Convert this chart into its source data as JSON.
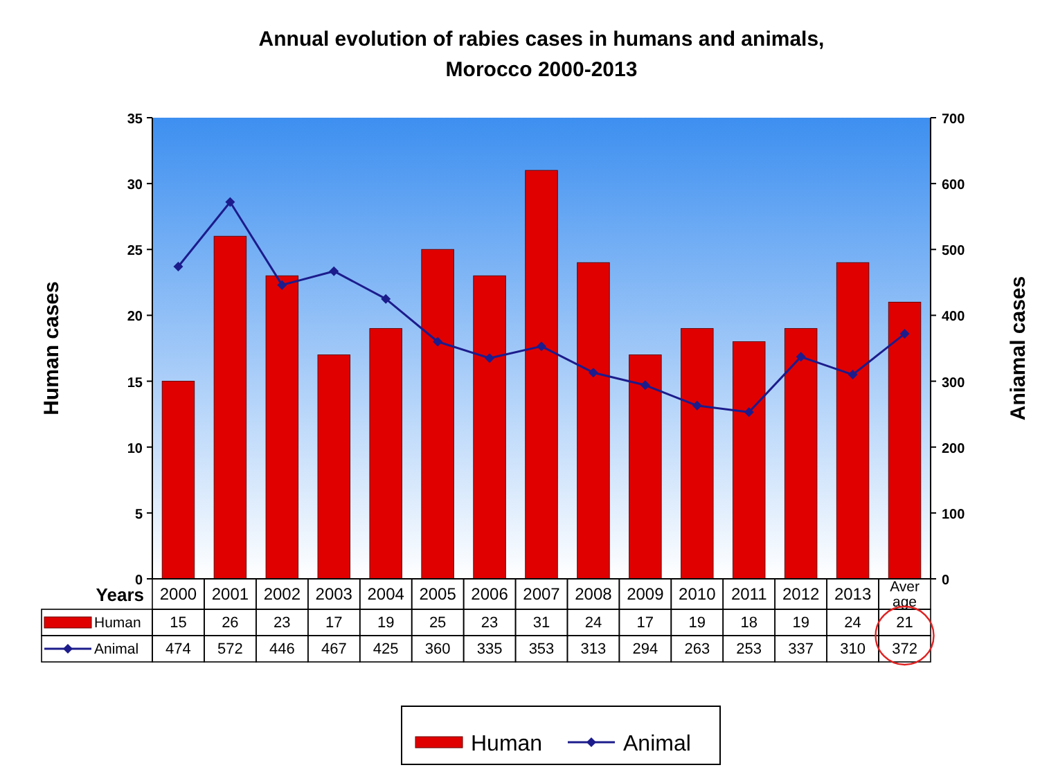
{
  "chart_data": {
    "type": "bar",
    "title": "Annual evolution of rabies cases in humans and animals,\nMorocco 2000-2013",
    "xlabel": "Years",
    "ylabel": "Human cases",
    "y2label": "Aniamal cases",
    "categories": [
      "2000",
      "2001",
      "2002",
      "2003",
      "2004",
      "2005",
      "2006",
      "2007",
      "2008",
      "2009",
      "2010",
      "2011",
      "2012",
      "2013",
      "Average"
    ],
    "series": [
      {
        "name": "Human",
        "color": "#e00000",
        "values": [
          15,
          26,
          23,
          17,
          19,
          25,
          23,
          31,
          24,
          17,
          19,
          18,
          19,
          24,
          21
        ]
      },
      {
        "name": "Animal",
        "type": "line",
        "axis": "y2",
        "color": "#1c1c8c",
        "values": [
          474,
          572,
          446,
          467,
          425,
          360,
          335,
          353,
          313,
          294,
          263,
          253,
          337,
          310,
          372
        ]
      }
    ],
    "ylim": [
      0,
      35
    ],
    "yticks": [
      0,
      5,
      10,
      15,
      20,
      25,
      30,
      35
    ],
    "y2lim": [
      0,
      700
    ],
    "y2ticks": [
      0,
      100,
      200,
      300,
      400,
      500,
      600,
      700
    ],
    "data_labels": true,
    "legend": "bottom",
    "marker": "diamond",
    "line_style": "solid",
    "grid": false
  }
}
